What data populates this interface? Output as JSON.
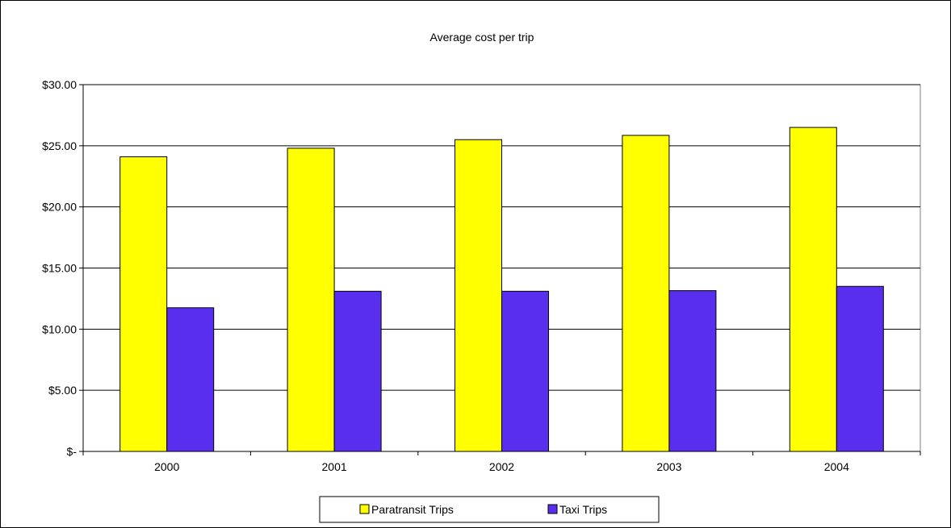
{
  "chart_data": {
    "type": "bar",
    "title": "Average cost per trip",
    "xlabel": "",
    "ylabel": "",
    "categories": [
      "2000",
      "2001",
      "2002",
      "2003",
      "2004"
    ],
    "series": [
      {
        "name": "Paratransit Trips",
        "color": "#FFFF00",
        "values": [
          24.1,
          24.8,
          25.5,
          25.85,
          26.5
        ]
      },
      {
        "name": "Taxi Trips",
        "color": "#5A2EEE",
        "values": [
          11.75,
          13.1,
          13.1,
          13.15,
          13.5
        ]
      }
    ],
    "ylim": [
      0,
      30
    ],
    "yticks": [
      0,
      5,
      10,
      15,
      20,
      25,
      30
    ],
    "ytick_labels": [
      "$-",
      "$5.00",
      "$10.00",
      "$15.00",
      "$20.00",
      "$25.00",
      "$30.00"
    ],
    "grid": true,
    "legend_position": "bottom"
  }
}
